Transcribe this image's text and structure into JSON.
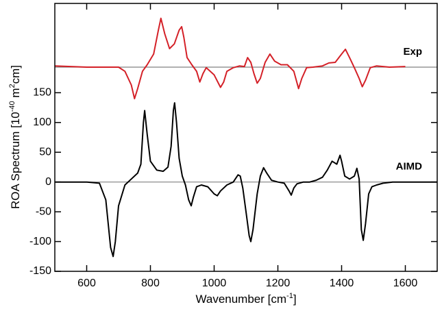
{
  "chart_data": {
    "type": "line",
    "ylabel": [
      "ROA Spectrum [10",
      "-40",
      " m",
      "2",
      "cm]"
    ],
    "xlabel": [
      "Wavenumber [cm",
      "-1",
      "]"
    ],
    "xlim": [
      500,
      1700
    ],
    "ylim": [
      -150,
      300
    ],
    "xticks": [
      600,
      800,
      1000,
      1200,
      1400,
      1600
    ],
    "yticks": [
      -150,
      -100,
      -50,
      0,
      50,
      100,
      150
    ],
    "baseline_color": "#808080",
    "series": [
      {
        "name": "Exp",
        "color": "#d42027",
        "baseline": 193,
        "x": [
          500,
          600,
          700,
          720,
          740,
          750,
          760,
          775,
          790,
          810,
          825,
          833,
          845,
          860,
          875,
          890,
          898,
          905,
          915,
          930,
          945,
          955,
          965,
          975,
          1000,
          1020,
          1030,
          1040,
          1060,
          1080,
          1095,
          1105,
          1115,
          1125,
          1135,
          1145,
          1160,
          1175,
          1190,
          1210,
          1230,
          1250,
          1265,
          1275,
          1290,
          1310,
          1340,
          1360,
          1380,
          1400,
          1412,
          1425,
          1440,
          1455,
          1465,
          1475,
          1490,
          1510,
          1550,
          1600
        ],
        "values": [
          195,
          193,
          193,
          186,
          163,
          140,
          157,
          186,
          197,
          215,
          255,
          275,
          249,
          224,
          232,
          255,
          261,
          243,
          209,
          197,
          186,
          168,
          182,
          192,
          180,
          159,
          168,
          186,
          192,
          195,
          194,
          209,
          201,
          182,
          166,
          174,
          201,
          215,
          203,
          197,
          197,
          186,
          157,
          174,
          192,
          193,
          195,
          200,
          201,
          215,
          223,
          209,
          192,
          174,
          160,
          171,
          192,
          195,
          193,
          194
        ]
      },
      {
        "name": "AIMD",
        "color": "#000000",
        "baseline": 0,
        "x": [
          500,
          600,
          640,
          660,
          675,
          683,
          690,
          700,
          720,
          740,
          760,
          770,
          778,
          782,
          790,
          800,
          820,
          840,
          855,
          865,
          872,
          876,
          882,
          890,
          900,
          910,
          920,
          928,
          935,
          945,
          960,
          980,
          1000,
          1010,
          1020,
          1040,
          1060,
          1075,
          1082,
          1090,
          1100,
          1110,
          1115,
          1122,
          1135,
          1145,
          1155,
          1165,
          1180,
          1200,
          1220,
          1235,
          1242,
          1250,
          1260,
          1280,
          1300,
          1320,
          1340,
          1355,
          1370,
          1385,
          1395,
          1400,
          1410,
          1425,
          1440,
          1448,
          1455,
          1462,
          1468,
          1475,
          1485,
          1495,
          1510,
          1530,
          1560,
          1600,
          1700
        ],
        "values": [
          0,
          0,
          -2,
          -30,
          -110,
          -125,
          -100,
          -40,
          -5,
          5,
          15,
          30,
          100,
          120,
          80,
          35,
          20,
          18,
          25,
          60,
          120,
          133,
          100,
          40,
          10,
          -5,
          -30,
          -40,
          -25,
          -8,
          -5,
          -8,
          -20,
          -23,
          -15,
          -5,
          0,
          12,
          10,
          -10,
          -50,
          -90,
          -100,
          -80,
          -20,
          10,
          24,
          15,
          3,
          0,
          -2,
          -15,
          -22,
          -10,
          -3,
          0,
          0,
          3,
          8,
          20,
          35,
          30,
          45,
          35,
          10,
          5,
          10,
          23,
          5,
          -80,
          -98,
          -70,
          -20,
          -8,
          -5,
          -2,
          0,
          0,
          0
        ]
      }
    ]
  }
}
